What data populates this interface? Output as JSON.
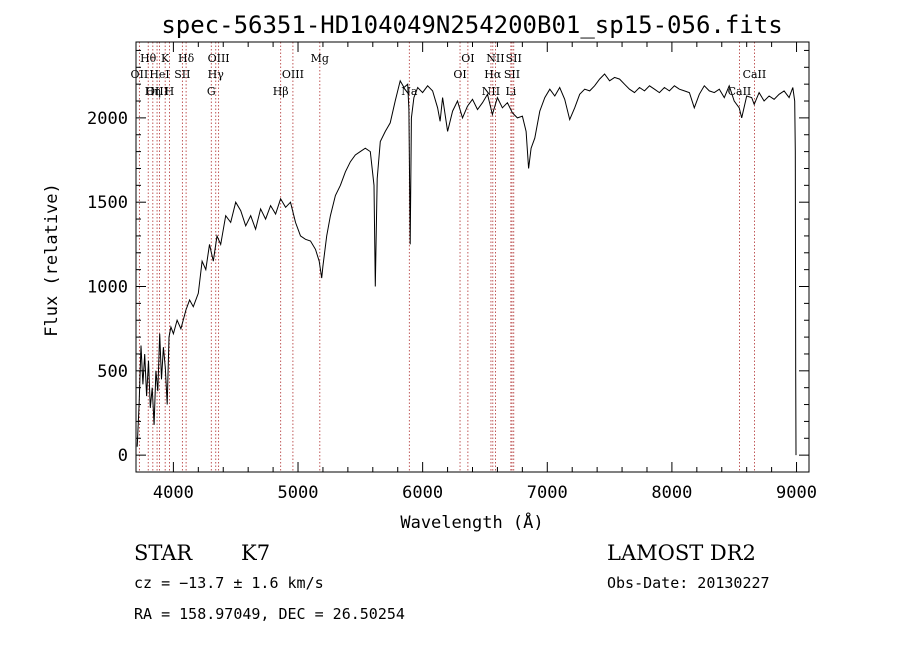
{
  "chart_data": {
    "type": "line",
    "title": "spec-56351-HD104049N254200B01_sp15-056.fits",
    "xlabel": "Wavelength (Å)",
    "ylabel": "Flux (relative)",
    "xlim": [
      3700,
      9100
    ],
    "ylim": [
      -100,
      2450
    ],
    "xticks": [
      4000,
      5000,
      6000,
      7000,
      8000,
      9000
    ],
    "yticks": [
      0,
      500,
      1000,
      1500,
      2000
    ],
    "grid": false,
    "line_color": "#000000",
    "marker_color": "#b03030",
    "series": [
      {
        "values": [
          [
            3710,
            50
          ],
          [
            3725,
            300
          ],
          [
            3740,
            650
          ],
          [
            3755,
            420
          ],
          [
            3770,
            600
          ],
          [
            3785,
            350
          ],
          [
            3800,
            560
          ],
          [
            3815,
            280
          ],
          [
            3830,
            400
          ],
          [
            3845,
            180
          ],
          [
            3860,
            500
          ],
          [
            3875,
            380
          ],
          [
            3890,
            720
          ],
          [
            3905,
            450
          ],
          [
            3920,
            640
          ],
          [
            3935,
            520
          ],
          [
            3950,
            300
          ],
          [
            3965,
            700
          ],
          [
            3980,
            760
          ],
          [
            4000,
            720
          ],
          [
            4030,
            800
          ],
          [
            4060,
            750
          ],
          [
            4100,
            860
          ],
          [
            4130,
            920
          ],
          [
            4160,
            880
          ],
          [
            4200,
            960
          ],
          [
            4230,
            1150
          ],
          [
            4260,
            1100
          ],
          [
            4290,
            1250
          ],
          [
            4320,
            1150
          ],
          [
            4350,
            1300
          ],
          [
            4380,
            1250
          ],
          [
            4420,
            1420
          ],
          [
            4460,
            1380
          ],
          [
            4500,
            1500
          ],
          [
            4540,
            1450
          ],
          [
            4580,
            1360
          ],
          [
            4620,
            1420
          ],
          [
            4660,
            1340
          ],
          [
            4700,
            1460
          ],
          [
            4740,
            1400
          ],
          [
            4780,
            1480
          ],
          [
            4820,
            1430
          ],
          [
            4860,
            1520
          ],
          [
            4900,
            1470
          ],
          [
            4940,
            1500
          ],
          [
            4980,
            1380
          ],
          [
            5020,
            1300
          ],
          [
            5060,
            1280
          ],
          [
            5100,
            1270
          ],
          [
            5140,
            1220
          ],
          [
            5170,
            1150
          ],
          [
            5190,
            1050
          ],
          [
            5200,
            1120
          ],
          [
            5230,
            1300
          ],
          [
            5260,
            1420
          ],
          [
            5300,
            1540
          ],
          [
            5340,
            1600
          ],
          [
            5380,
            1680
          ],
          [
            5420,
            1740
          ],
          [
            5460,
            1780
          ],
          [
            5500,
            1800
          ],
          [
            5540,
            1820
          ],
          [
            5580,
            1800
          ],
          [
            5610,
            1600
          ],
          [
            5620,
            1000
          ],
          [
            5635,
            1640
          ],
          [
            5660,
            1860
          ],
          [
            5700,
            1920
          ],
          [
            5740,
            1970
          ],
          [
            5780,
            2100
          ],
          [
            5820,
            2220
          ],
          [
            5850,
            2180
          ],
          [
            5880,
            2200
          ],
          [
            5890,
            2050
          ],
          [
            5900,
            1250
          ],
          [
            5910,
            2000
          ],
          [
            5930,
            2120
          ],
          [
            5960,
            2180
          ],
          [
            6000,
            2150
          ],
          [
            6040,
            2190
          ],
          [
            6080,
            2160
          ],
          [
            6120,
            2060
          ],
          [
            6140,
            1980
          ],
          [
            6160,
            2120
          ],
          [
            6200,
            1920
          ],
          [
            6240,
            2040
          ],
          [
            6280,
            2100
          ],
          [
            6320,
            2000
          ],
          [
            6360,
            2070
          ],
          [
            6400,
            2110
          ],
          [
            6440,
            2050
          ],
          [
            6480,
            2090
          ],
          [
            6520,
            2140
          ],
          [
            6560,
            2020
          ],
          [
            6600,
            2120
          ],
          [
            6640,
            2060
          ],
          [
            6680,
            2090
          ],
          [
            6720,
            2030
          ],
          [
            6760,
            2000
          ],
          [
            6800,
            2010
          ],
          [
            6830,
            1920
          ],
          [
            6850,
            1700
          ],
          [
            6870,
            1820
          ],
          [
            6900,
            1880
          ],
          [
            6940,
            2040
          ],
          [
            6980,
            2120
          ],
          [
            7020,
            2170
          ],
          [
            7060,
            2130
          ],
          [
            7100,
            2180
          ],
          [
            7140,
            2110
          ],
          [
            7180,
            1990
          ],
          [
            7220,
            2060
          ],
          [
            7260,
            2140
          ],
          [
            7300,
            2170
          ],
          [
            7340,
            2160
          ],
          [
            7380,
            2190
          ],
          [
            7420,
            2230
          ],
          [
            7460,
            2260
          ],
          [
            7500,
            2220
          ],
          [
            7540,
            2240
          ],
          [
            7580,
            2230
          ],
          [
            7620,
            2200
          ],
          [
            7660,
            2170
          ],
          [
            7700,
            2150
          ],
          [
            7740,
            2180
          ],
          [
            7780,
            2160
          ],
          [
            7820,
            2190
          ],
          [
            7860,
            2170
          ],
          [
            7900,
            2150
          ],
          [
            7940,
            2180
          ],
          [
            7980,
            2160
          ],
          [
            8020,
            2190
          ],
          [
            8060,
            2170
          ],
          [
            8100,
            2160
          ],
          [
            8140,
            2150
          ],
          [
            8180,
            2060
          ],
          [
            8220,
            2140
          ],
          [
            8260,
            2190
          ],
          [
            8300,
            2160
          ],
          [
            8340,
            2150
          ],
          [
            8380,
            2170
          ],
          [
            8420,
            2120
          ],
          [
            8460,
            2190
          ],
          [
            8500,
            2100
          ],
          [
            8540,
            2060
          ],
          [
            8560,
            2000
          ],
          [
            8600,
            2130
          ],
          [
            8640,
            2120
          ],
          [
            8660,
            2080
          ],
          [
            8700,
            2150
          ],
          [
            8740,
            2100
          ],
          [
            8780,
            2130
          ],
          [
            8820,
            2110
          ],
          [
            8860,
            2140
          ],
          [
            8900,
            2160
          ],
          [
            8940,
            2120
          ],
          [
            8970,
            2180
          ],
          [
            8985,
            2100
          ],
          [
            8990,
            1800
          ],
          [
            8993,
            500
          ],
          [
            8996,
            0
          ]
        ]
      }
    ],
    "line_labels": [
      {
        "text": "Hθ",
        "x": 3798,
        "row": 1
      },
      {
        "text": "K",
        "x": 3934,
        "row": 1
      },
      {
        "text": "Hδ",
        "x": 4102,
        "row": 1
      },
      {
        "text": "OIII",
        "x": 4363,
        "row": 1
      },
      {
        "text": "Mg",
        "x": 5175,
        "row": 1
      },
      {
        "text": "OI",
        "x": 6363,
        "row": 1
      },
      {
        "text": "NII",
        "x": 6584,
        "row": 1
      },
      {
        "text": "SII",
        "x": 6731,
        "row": 1
      },
      {
        "text": "OII",
        "x": 3727,
        "row": 2
      },
      {
        "text": "HeI",
        "x": 3889,
        "row": 2
      },
      {
        "text": "SII",
        "x": 4072,
        "row": 2
      },
      {
        "text": "Hγ",
        "x": 4340,
        "row": 2
      },
      {
        "text": "OIII",
        "x": 4959,
        "row": 2
      },
      {
        "text": "OI",
        "x": 6300,
        "row": 2
      },
      {
        "text": "Hα",
        "x": 6563,
        "row": 2
      },
      {
        "text": "SII",
        "x": 6717,
        "row": 2
      },
      {
        "text": "CaII",
        "x": 8662,
        "row": 2
      },
      {
        "text": "OIII",
        "x": 3869,
        "row": 3
      },
      {
        "text": "Hη",
        "x": 3835,
        "row": 3
      },
      {
        "text": "H",
        "x": 3968,
        "row": 3
      },
      {
        "text": "G",
        "x": 4304,
        "row": 3
      },
      {
        "text": "Hβ",
        "x": 4861,
        "row": 3
      },
      {
        "text": "Na",
        "x": 5893,
        "row": 3
      },
      {
        "text": "NII",
        "x": 6548,
        "row": 3
      },
      {
        "text": "Li",
        "x": 6708,
        "row": 3
      },
      {
        "text": "CaII",
        "x": 8542,
        "row": 3
      }
    ],
    "marker_lines": [
      3727,
      3798,
      3835,
      3869,
      3889,
      3934,
      3968,
      4072,
      4102,
      4304,
      4340,
      4363,
      4861,
      4959,
      5175,
      5893,
      6300,
      6363,
      6548,
      6563,
      6584,
      6708,
      6717,
      6731,
      8542,
      8662
    ]
  },
  "info": {
    "object_class": "STAR",
    "subclass": "K7",
    "survey": "LAMOST DR2",
    "redshift": "cz = −13.7 ± 1.6 km/s",
    "obs_date": "Obs-Date: 20130227",
    "coords": "RA = 158.97049, DEC =  26.50254"
  }
}
